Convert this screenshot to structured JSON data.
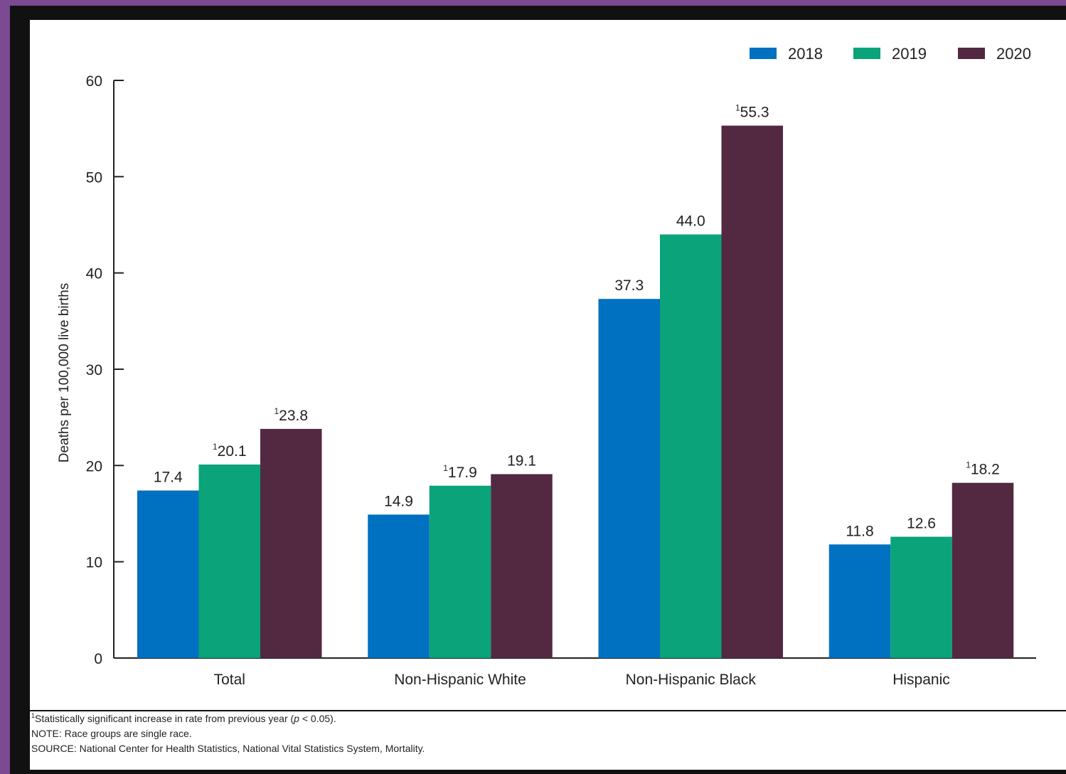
{
  "chart_data": {
    "type": "bar",
    "title": "",
    "xlabel": "",
    "ylabel": "Deaths per 100,000 live births",
    "ylim": [
      0,
      60
    ],
    "yticks": [
      0,
      10,
      20,
      30,
      40,
      50,
      60
    ],
    "grid": false,
    "legend_position": "top-right",
    "categories": [
      "Total",
      "Non-Hispanic White",
      "Non-Hispanic Black",
      "Hispanic"
    ],
    "series": [
      {
        "name": "2018",
        "color": "#0070c0",
        "values": [
          17.4,
          14.9,
          37.3,
          11.8
        ],
        "labels": [
          "17.4",
          "14.9",
          "37.3",
          "11.8"
        ],
        "significant": [
          false,
          false,
          false,
          false
        ]
      },
      {
        "name": "2019",
        "color": "#0aa37a",
        "values": [
          20.1,
          17.9,
          44.0,
          12.6
        ],
        "labels": [
          "20.1",
          "17.9",
          "44.0",
          "12.6"
        ],
        "significant": [
          true,
          true,
          false,
          false
        ]
      },
      {
        "name": "2020",
        "color": "#522941",
        "values": [
          23.8,
          19.1,
          55.3,
          18.2
        ],
        "labels": [
          "23.8",
          "19.1",
          "55.3",
          "18.2"
        ],
        "significant": [
          true,
          false,
          true,
          true
        ]
      }
    ],
    "significance_marker": "1"
  },
  "footnotes": {
    "marker": "1",
    "significance_text": "Statistically significant increase in rate from previous year (",
    "p_symbol": "p",
    "p_condition": " < 0.05).",
    "note": "NOTE: Race groups are single race.",
    "source": "SOURCE: National Center for Health Statistics, National Vital Statistics System, Mortality."
  }
}
